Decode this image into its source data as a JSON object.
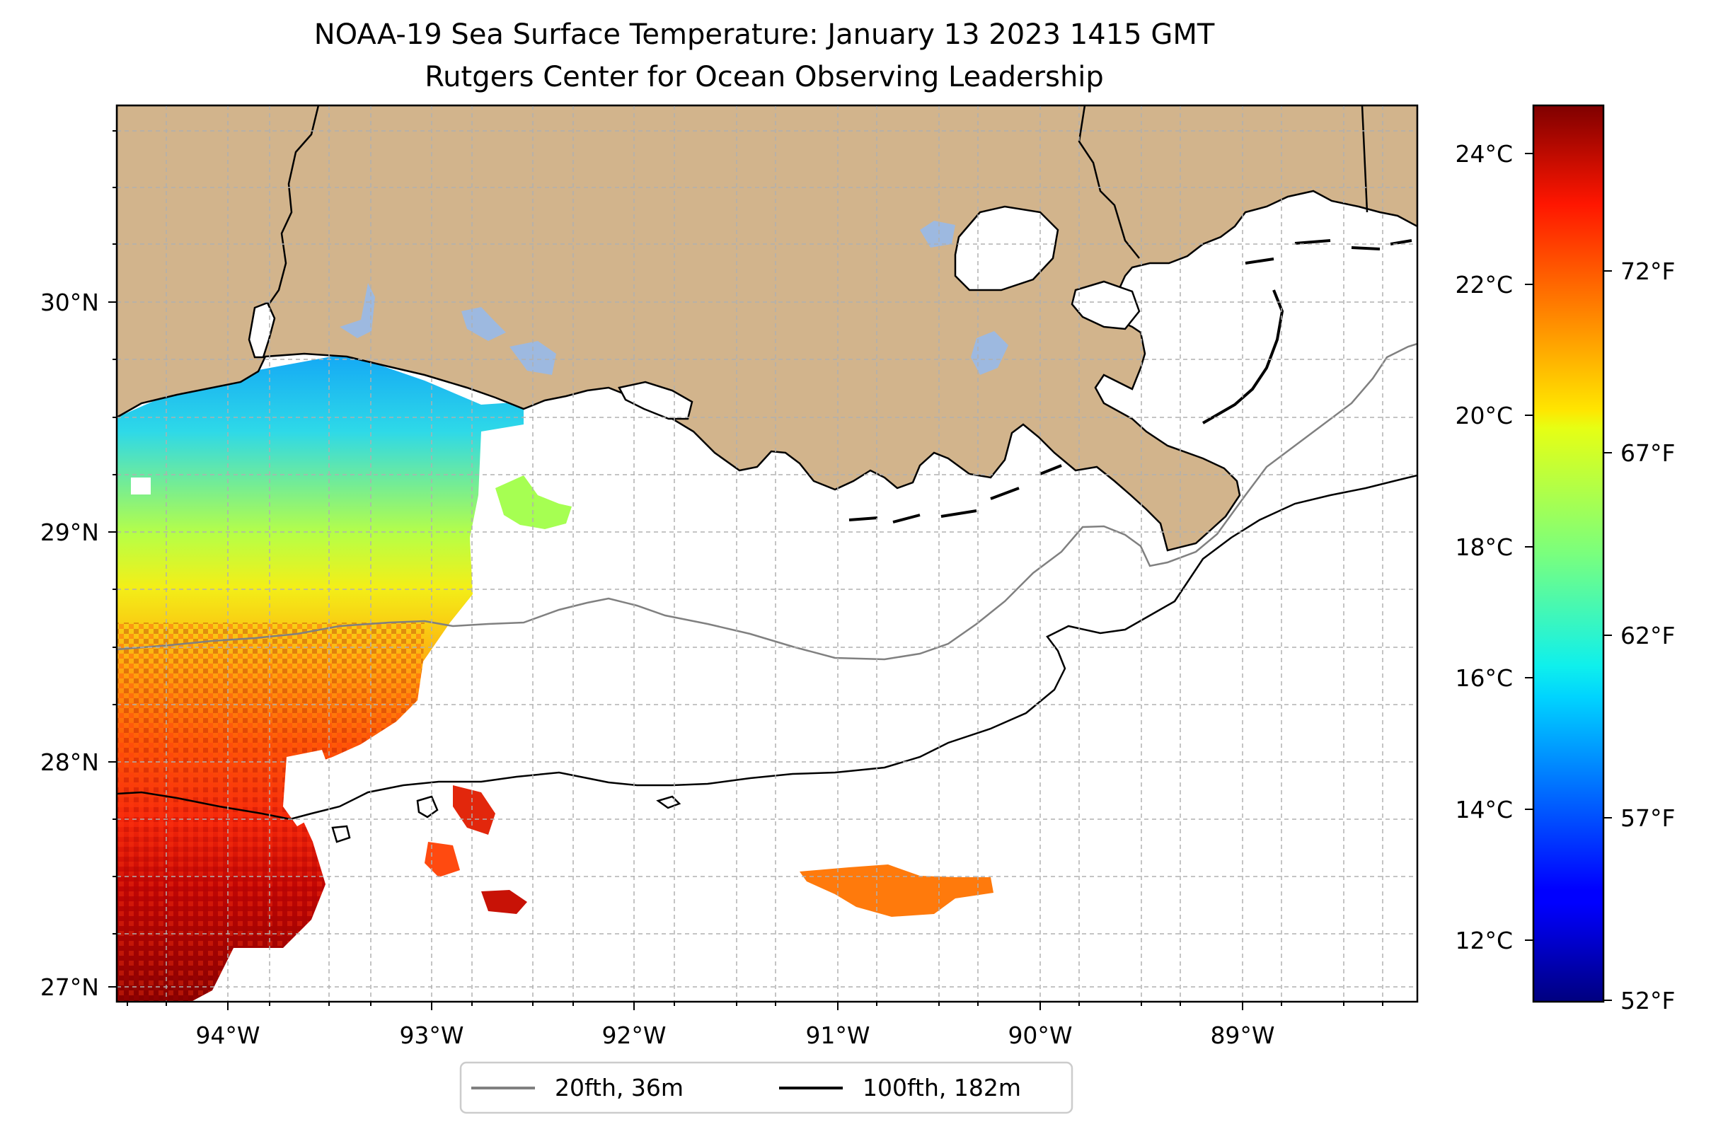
{
  "title": {
    "line1": "NOAA-19 Sea Surface Temperature: January 13 2023 1415 GMT",
    "line2": "Rutgers Center for Ocean Observing Leadership"
  },
  "map": {
    "lon_range": [
      -94.55,
      -88.25
    ],
    "lat_range": [
      26.93,
      30.83
    ],
    "grid": true,
    "grid_style": "dashed",
    "land_color": "#d2b48c",
    "lake_color": "#9db9e0",
    "x_ticks": [
      "94°W",
      "93°W",
      "92°W",
      "91°W",
      "90°W",
      "89°W"
    ],
    "y_ticks": [
      "30°N",
      "29°N",
      "28°N",
      "27°N"
    ]
  },
  "colorbar": {
    "colormap": "jet",
    "range_celsius": [
      11.1,
      24.7
    ],
    "celsius_ticks": [
      "24°C",
      "22°C",
      "20°C",
      "18°C",
      "16°C",
      "14°C",
      "12°C"
    ],
    "fahrenheit_ticks": [
      "72°F",
      "67°F",
      "62°F",
      "57°F",
      "52°F"
    ]
  },
  "legend": {
    "placement": "bottom-center",
    "items": [
      {
        "label": "20fth, 36m",
        "color": "#808080"
      },
      {
        "label": "100fth, 182m",
        "color": "#000000"
      }
    ]
  }
}
